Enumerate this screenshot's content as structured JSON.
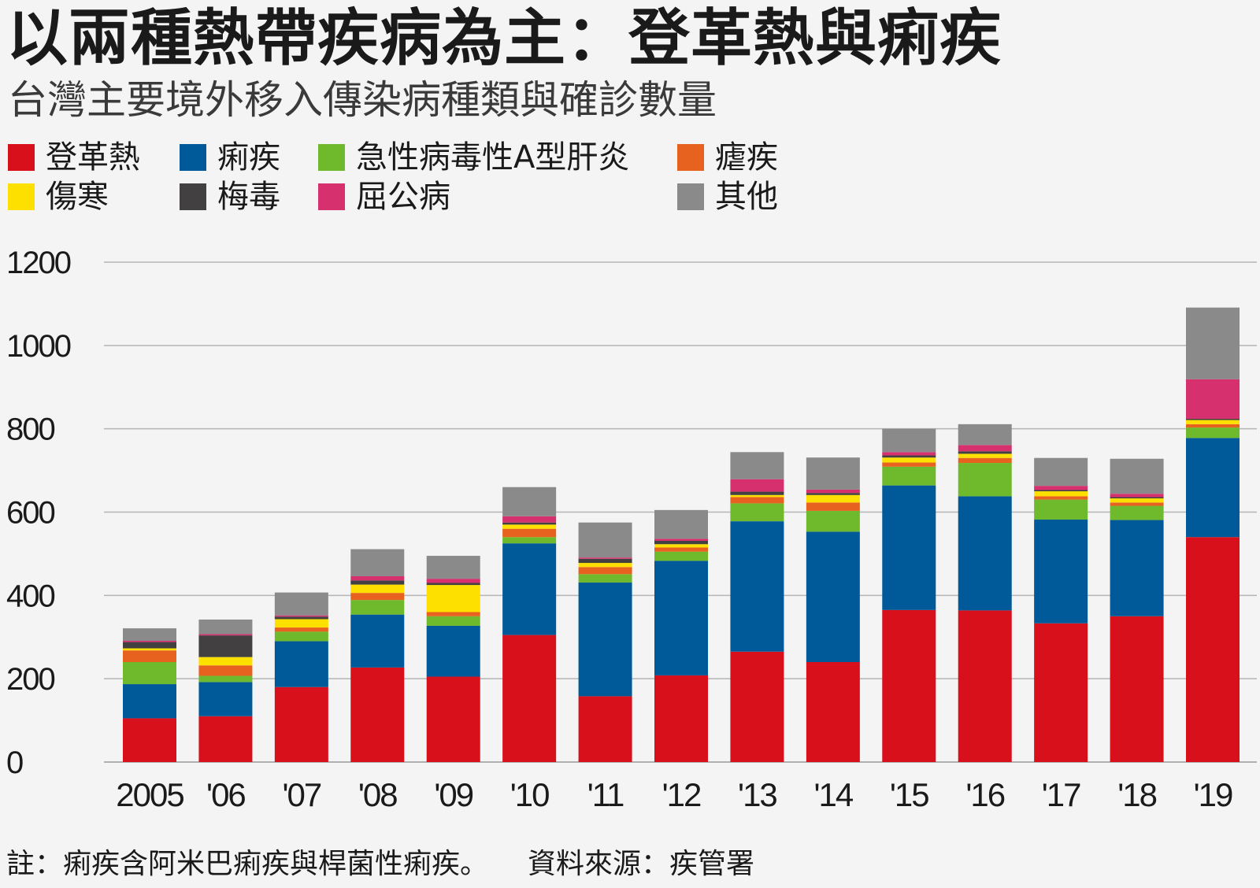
{
  "header": {
    "title": "以兩種熱帶疾病為主：登革熱與痢疾",
    "subtitle": "台灣主要境外移入傳染病種類與確診數量"
  },
  "footer": {
    "note": "註：痢疾含阿米巴痢疾與桿菌性痢疾。",
    "source": "資料來源：疾管署"
  },
  "colors": {
    "background": "#f4f4f4",
    "grid": "#b5b5b5",
    "axis_text": "#1a1a1a"
  },
  "chart_data": {
    "type": "bar",
    "stacked": true,
    "title": "以兩種熱帶疾病為主：登革熱與痢疾",
    "subtitle": "台灣主要境外移入傳染病種類與確診數量",
    "xlabel": "",
    "ylabel": "",
    "ylim": [
      0,
      1200
    ],
    "yticks": [
      0,
      200,
      400,
      600,
      800,
      1000,
      1200
    ],
    "grid": true,
    "legend_position": "top-left",
    "categories": [
      "2005",
      "'06",
      "'07",
      "'08",
      "'09",
      "'10",
      "'11",
      "'12",
      "'13",
      "'14",
      "'15",
      "'16",
      "'17",
      "'18",
      "'19"
    ],
    "series": [
      {
        "name": "登革熱",
        "color": "#d7101c",
        "values": [
          105,
          110,
          180,
          227,
          205,
          305,
          158,
          208,
          265,
          240,
          365,
          364,
          333,
          350,
          540
        ]
      },
      {
        "name": "痢疾",
        "color": "#005a9a",
        "values": [
          82,
          82,
          110,
          127,
          122,
          220,
          273,
          275,
          313,
          313,
          299,
          274,
          249,
          231,
          238
        ]
      },
      {
        "name": "急性病毒性A型肝炎",
        "color": "#6fb92c",
        "values": [
          53,
          15,
          23,
          35,
          23,
          15,
          20,
          22,
          43,
          50,
          45,
          80,
          48,
          34,
          25
        ]
      },
      {
        "name": "瘧疾",
        "color": "#e8621f",
        "values": [
          28,
          25,
          10,
          17,
          10,
          20,
          17,
          10,
          15,
          20,
          10,
          12,
          8,
          8,
          8
        ]
      },
      {
        "name": "傷寒",
        "color": "#fddf00",
        "values": [
          5,
          20,
          20,
          20,
          65,
          10,
          10,
          8,
          5,
          18,
          12,
          10,
          12,
          10,
          10
        ]
      },
      {
        "name": "梅毒",
        "color": "#424040",
        "values": [
          15,
          52,
          6,
          10,
          5,
          5,
          10,
          8,
          8,
          5,
          5,
          6,
          3,
          3,
          3
        ]
      },
      {
        "name": "屈公病",
        "color": "#d6306f",
        "values": [
          3,
          3,
          3,
          10,
          10,
          15,
          3,
          5,
          30,
          8,
          8,
          15,
          10,
          8,
          95
        ]
      },
      {
        "name": "其他",
        "color": "#8a8a8a",
        "values": [
          30,
          35,
          55,
          65,
          55,
          70,
          84,
          69,
          65,
          77,
          56,
          50,
          67,
          84,
          172
        ]
      }
    ]
  }
}
